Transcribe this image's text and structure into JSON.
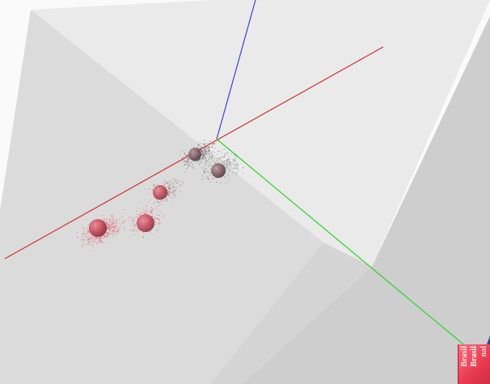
{
  "scene": {
    "thumbnail_lines": [
      "Brasil",
      "Brasil",
      "nal"
    ],
    "colors": {
      "axis_x": "#d23030",
      "axis_y": "#3a44c8",
      "axis_z": "#2fd12f",
      "box_front": "#dcdcdc",
      "box_side": "#c8c8c8",
      "box_top": "#e9e9e9",
      "sphere": "#c84a5a",
      "particles_red": "#e25060",
      "particles_dark": "#4a4a4a"
    }
  }
}
